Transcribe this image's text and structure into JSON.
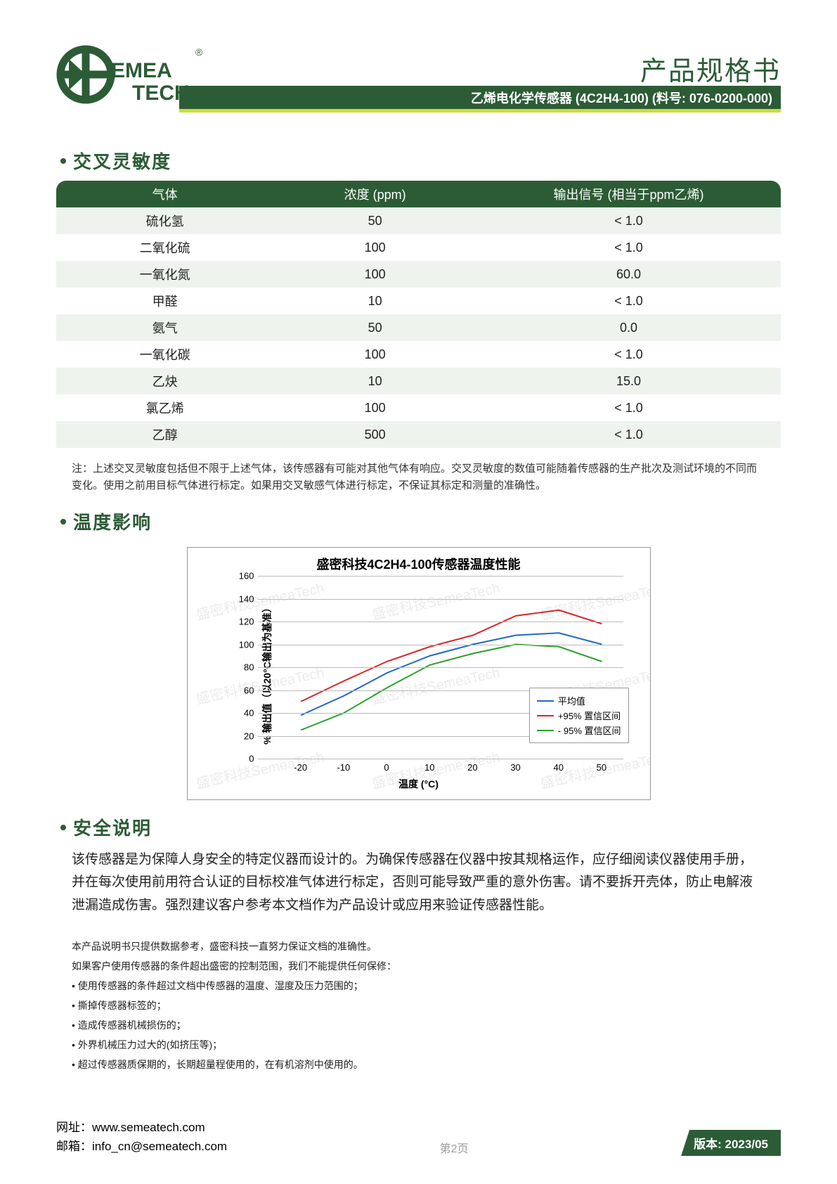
{
  "header": {
    "brand_top": "EMEA",
    "brand_bot": "TECH",
    "doc_title": "产品规格书",
    "title_bar": "乙烯电化学传感器 (4C2H4-100) (料号: 076-0200-000)",
    "reg_mark": "®"
  },
  "cross_sensitivity": {
    "title": "交叉灵敏度",
    "columns": [
      "气体",
      "浓度 (ppm)",
      "输出信号 (相当于ppm乙烯)"
    ],
    "rows": [
      {
        "gas": "硫化氢",
        "conc": "50",
        "signal": "< 1.0"
      },
      {
        "gas": "二氧化硫",
        "conc": "100",
        "signal": "< 1.0"
      },
      {
        "gas": "一氧化氮",
        "conc": "100",
        "signal": "60.0"
      },
      {
        "gas": "甲醛",
        "conc": "10",
        "signal": "< 1.0"
      },
      {
        "gas": "氨气",
        "conc": "50",
        "signal": "0.0"
      },
      {
        "gas": "一氧化碳",
        "conc": "100",
        "signal": "< 1.0"
      },
      {
        "gas": "乙炔",
        "conc": "10",
        "signal": "15.0"
      },
      {
        "gas": "氯乙烯",
        "conc": "100",
        "signal": "< 1.0"
      },
      {
        "gas": "乙醇",
        "conc": "500",
        "signal": "< 1.0"
      }
    ],
    "note": "注：上述交叉灵敏度包括但不限于上述气体，该传感器有可能对其他气体有响应。交叉灵敏度的数值可能随着传感器的生产批次及测试环境的不同而变化。使用之前用目标气体进行标定。如果用交叉敏感气体进行标定，不保证其标定和测量的准确性。"
  },
  "temp_effect": {
    "title": "温度影响",
    "chart": {
      "type": "line",
      "title": "盛密科技4C2H4-100传感器温度性能",
      "xlabel": "温度 (°C)",
      "ylabel": "% 输出值（以20°C输出为基准）",
      "xlim": [
        -30,
        55
      ],
      "ylim": [
        0,
        160
      ],
      "xticks": [
        -20,
        -10,
        0,
        10,
        20,
        30,
        40,
        50
      ],
      "yticks": [
        0,
        20,
        40,
        60,
        80,
        100,
        120,
        140,
        160
      ],
      "grid_color": "#bbbbbb",
      "background_color": "#ffffff",
      "series": [
        {
          "name": "平均值",
          "color": "#1f68c4",
          "x": [
            -20,
            -10,
            0,
            10,
            20,
            30,
            40,
            50
          ],
          "y": [
            38,
            55,
            75,
            90,
            100,
            108,
            110,
            100
          ]
        },
        {
          "name": "+95% 置信区间",
          "color": "#d62728",
          "x": [
            -20,
            -10,
            0,
            10,
            20,
            30,
            40,
            50
          ],
          "y": [
            50,
            68,
            85,
            98,
            108,
            125,
            130,
            118
          ]
        },
        {
          "name": "- 95% 置信区间",
          "color": "#2ca02c",
          "x": [
            -20,
            -10,
            0,
            10,
            20,
            30,
            40,
            50
          ],
          "y": [
            25,
            40,
            62,
            82,
            92,
            100,
            98,
            85
          ]
        }
      ],
      "line_width": 2,
      "legend_pos": "inside-right",
      "watermark_text": "盛密科技SemeaTech"
    }
  },
  "safety": {
    "title": "安全说明",
    "text": "该传感器是为保障人身安全的特定仪器而设计的。为确保传感器在仪器中按其规格运作，应仔细阅读仪器使用手册，并在每次使用前用符合认证的目标校准气体进行标定，否则可能导致严重的意外伤害。请不要拆开壳体，防止电解液泄漏造成伤害。强烈建议客户参考本文档作为产品设计或应用来验证传感器性能。"
  },
  "disclaimer": {
    "intro1": "本产品说明书只提供数据参考，盛密科技一直努力保证文档的准确性。",
    "intro2": "如果客户使用传感器的条件超出盛密的控制范围，我们不能提供任何保修：",
    "items": [
      "使用传感器的条件超过文档中传感器的温度、湿度及压力范围的；",
      "撕掉传感器标签的；",
      "造成传感器机械损伤的；",
      "外界机械压力过大的(如挤压等)；",
      "超过传感器质保期的，长期超量程使用的，在有机溶剂中使用的。"
    ]
  },
  "footer": {
    "web_label": "网址：",
    "web": "www.semeatech.com",
    "mail_label": "邮箱：",
    "mail": "info_cn@semeatech.com",
    "page": "第2页",
    "version": "版本: 2023/05"
  }
}
